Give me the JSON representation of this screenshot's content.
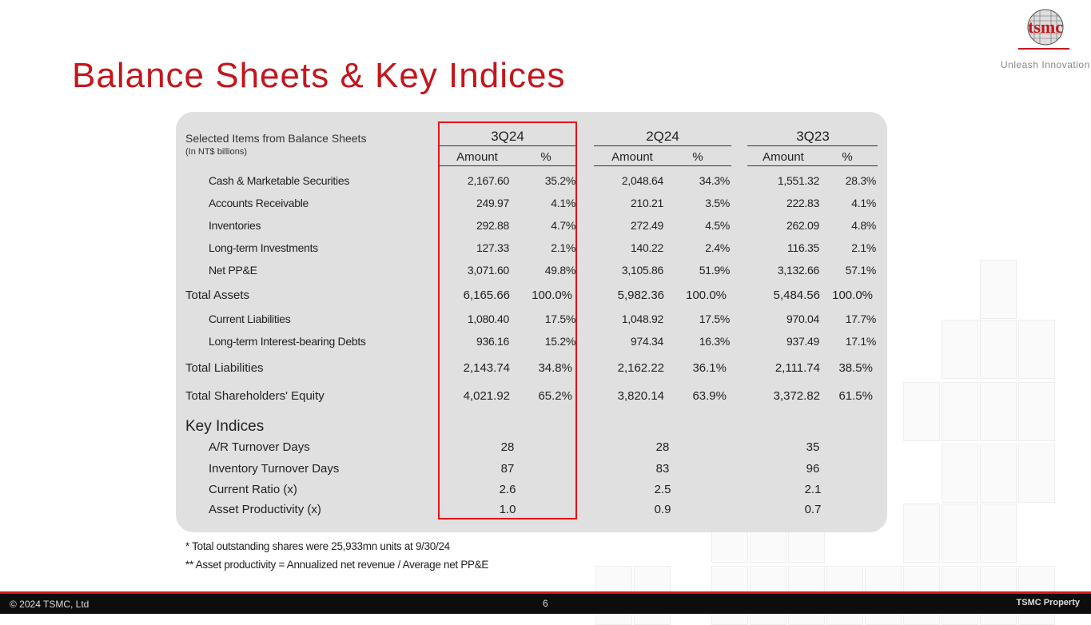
{
  "slide": {
    "title": "Balance Sheets & Key Indices",
    "logo_text": "tsmc",
    "tagline": "Unleash Innovation",
    "accent_color": "#c4161c"
  },
  "table": {
    "header": "Selected Items from Balance Sheets",
    "subheader": "(In NT$ billions)",
    "periods": [
      "3Q24",
      "2Q24",
      "3Q23"
    ],
    "col_amount": "Amount",
    "col_pct": "%",
    "highlighted_period": "3Q24",
    "rows": [
      {
        "label": "Cash & Marketable Securities",
        "level": "sub",
        "values": [
          [
            "2,167.60",
            "35.2%"
          ],
          [
            "2,048.64",
            "34.3%"
          ],
          [
            "1,551.32",
            "28.3%"
          ]
        ]
      },
      {
        "label": "Accounts Receivable",
        "level": "sub",
        "values": [
          [
            "249.97",
            "4.1%"
          ],
          [
            "210.21",
            "3.5%"
          ],
          [
            "222.83",
            "4.1%"
          ]
        ]
      },
      {
        "label": "Inventories",
        "level": "sub",
        "values": [
          [
            "292.88",
            "4.7%"
          ],
          [
            "272.49",
            "4.5%"
          ],
          [
            "262.09",
            "4.8%"
          ]
        ]
      },
      {
        "label": "Long-term Investments",
        "level": "sub",
        "values": [
          [
            "127.33",
            "2.1%"
          ],
          [
            "140.22",
            "2.4%"
          ],
          [
            "116.35",
            "2.1%"
          ]
        ]
      },
      {
        "label": "Net PP&E",
        "level": "sub",
        "values": [
          [
            "3,071.60",
            "49.8%"
          ],
          [
            "3,105.86",
            "51.9%"
          ],
          [
            "3,132.66",
            "57.1%"
          ]
        ]
      },
      {
        "label": "Total Assets",
        "level": "total",
        "values": [
          [
            "6,165.66",
            "100.0%"
          ],
          [
            "5,982.36",
            "100.0%"
          ],
          [
            "5,484.56",
            "100.0%"
          ]
        ]
      },
      {
        "label": "Current Liabilities",
        "level": "sub",
        "values": [
          [
            "1,080.40",
            "17.5%"
          ],
          [
            "1,048.92",
            "17.5%"
          ],
          [
            "970.04",
            "17.7%"
          ]
        ]
      },
      {
        "label": "Long-term Interest-bearing Debts",
        "level": "sub",
        "values": [
          [
            "936.16",
            "15.2%"
          ],
          [
            "974.34",
            "16.3%"
          ],
          [
            "937.49",
            "17.1%"
          ]
        ]
      },
      {
        "label": "Total Liabilities",
        "level": "total",
        "values": [
          [
            "2,143.74",
            "34.8%"
          ],
          [
            "2,162.22",
            "36.1%"
          ],
          [
            "2,111.74",
            "38.5%"
          ]
        ]
      },
      {
        "label": "Total Shareholders' Equity",
        "level": "total",
        "values": [
          [
            "4,021.92",
            "65.2%"
          ],
          [
            "3,820.14",
            "63.9%"
          ],
          [
            "3,372.82",
            "61.5%"
          ]
        ]
      }
    ],
    "key_indices_title": "Key Indices",
    "key_indices": [
      {
        "label": "A/R Turnover Days",
        "values": [
          "28",
          "28",
          "35"
        ]
      },
      {
        "label": "Inventory Turnover Days",
        "values": [
          "87",
          "83",
          "96"
        ]
      },
      {
        "label": "Current Ratio (x)",
        "values": [
          "2.6",
          "2.5",
          "2.1"
        ]
      },
      {
        "label": "Asset Productivity (x)",
        "values": [
          "1.0",
          "0.9",
          "0.7"
        ]
      }
    ]
  },
  "notes": [
    "*  Total outstanding shares were 25,933mn units at 9/30/24",
    "** Asset productivity = Annualized net revenue / Average net PP&E"
  ],
  "footer": {
    "copyright": "© 2024 TSMC, Ltd",
    "page_number": "6",
    "property": "TSMC Property"
  }
}
